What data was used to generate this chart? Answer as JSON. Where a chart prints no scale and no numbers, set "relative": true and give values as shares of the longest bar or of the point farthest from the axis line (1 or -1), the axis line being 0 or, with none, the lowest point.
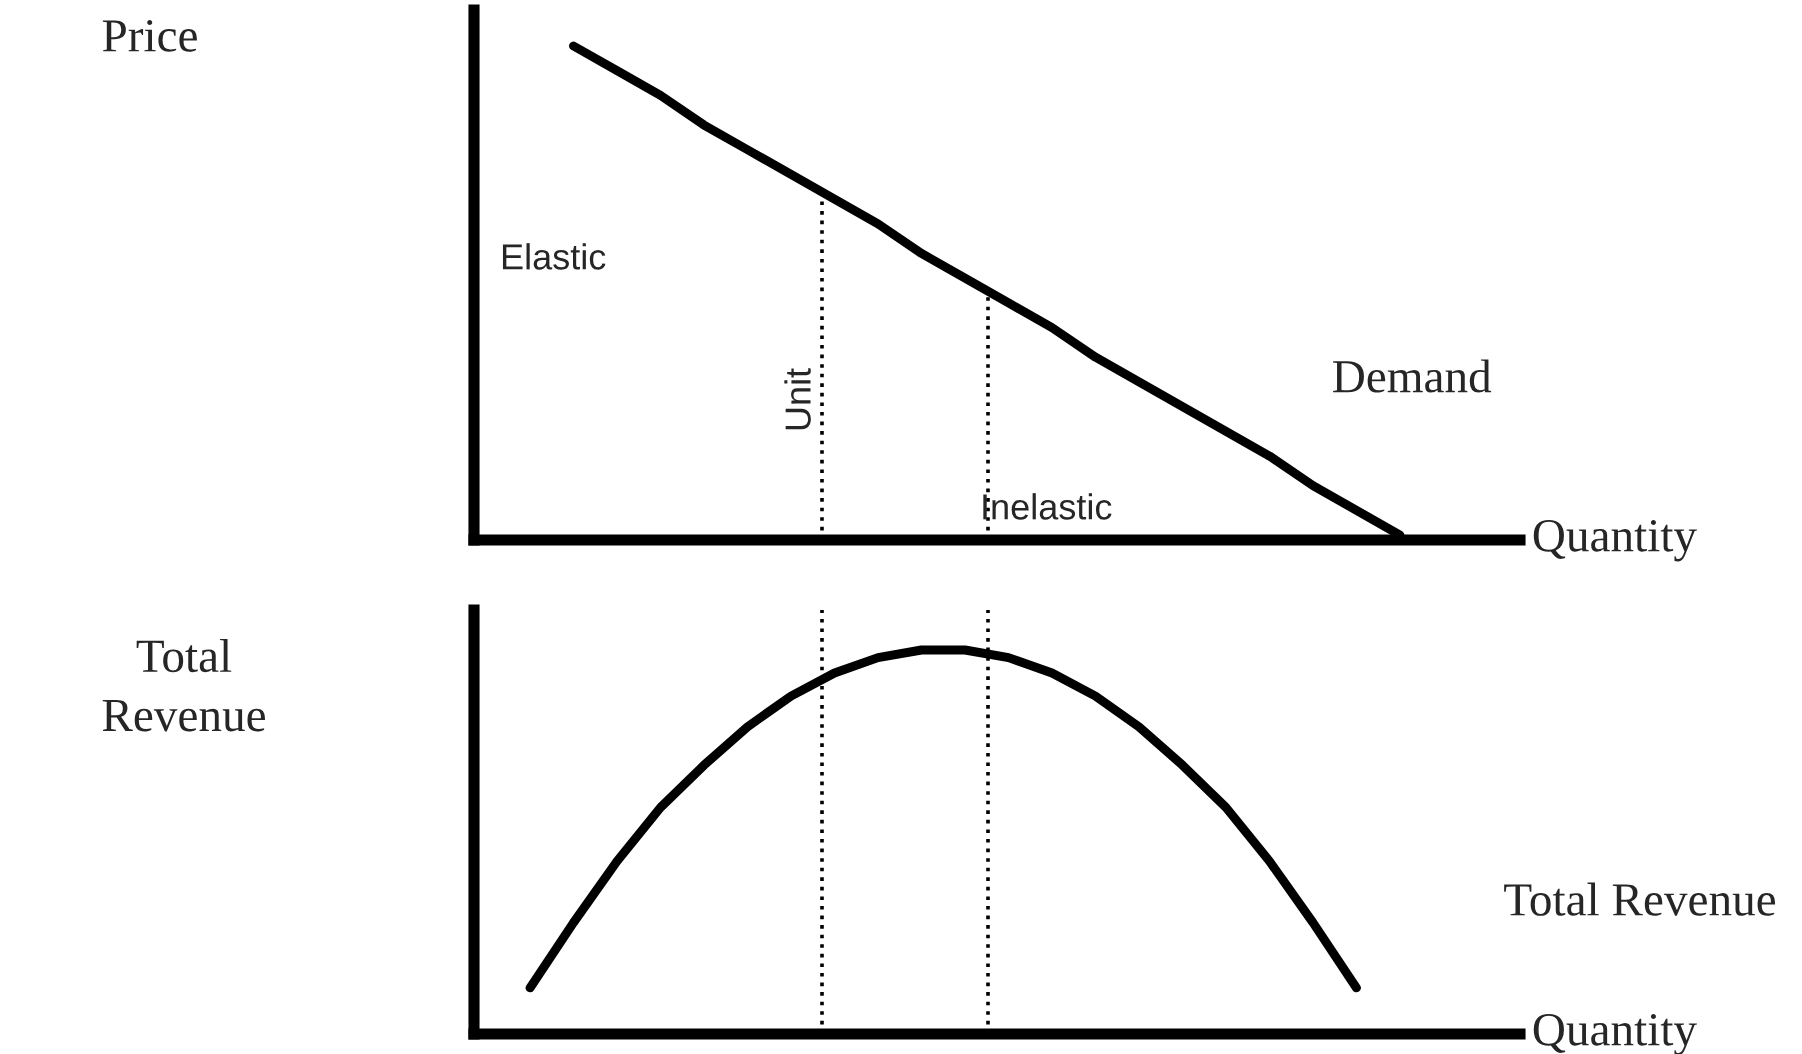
{
  "chart_data": [
    {
      "type": "line",
      "relative": true,
      "ylabel": "Price",
      "xlabel": "Quantity",
      "categories": [
        null,
        null,
        null,
        null,
        null,
        null,
        null,
        null,
        null,
        null,
        null,
        null,
        null,
        null,
        null,
        null,
        null,
        null,
        null,
        null,
        null
      ],
      "series": [
        {
          "name": "Demand",
          "color": "#000000",
          "values": [
            null,
            1.0,
            0.95,
            0.9,
            0.84,
            0.79,
            0.74,
            0.69,
            0.64,
            0.58,
            0.53,
            0.48,
            0.43,
            0.37,
            0.32,
            0.27,
            0.22,
            0.17,
            0.11,
            0.06,
            0.01
          ]
        }
      ],
      "annotations": [
        "Elastic",
        "Unit",
        "Inelastic"
      ],
      "legend": false,
      "marker": "none",
      "line_style": "solid"
    },
    {
      "type": "line",
      "relative": true,
      "ylabel": "Total\nRevenue",
      "xlabel": "Quantity",
      "categories": [
        null,
        null,
        null,
        null,
        null,
        null,
        null,
        null,
        null,
        null,
        null,
        null,
        null,
        null,
        null,
        null,
        null,
        null,
        null,
        null,
        null
      ],
      "series": [
        {
          "name": "Total Revenue",
          "color": "#000000",
          "values": [
            0.12,
            0.29,
            0.45,
            0.59,
            0.7,
            0.8,
            0.88,
            0.94,
            0.98,
            1.0,
            1.0,
            0.98,
            0.94,
            0.88,
            0.8,
            0.7,
            0.59,
            0.45,
            0.29,
            0.12,
            null
          ]
        }
      ],
      "legend": false,
      "marker": "none",
      "line_style": "solid"
    }
  ]
}
